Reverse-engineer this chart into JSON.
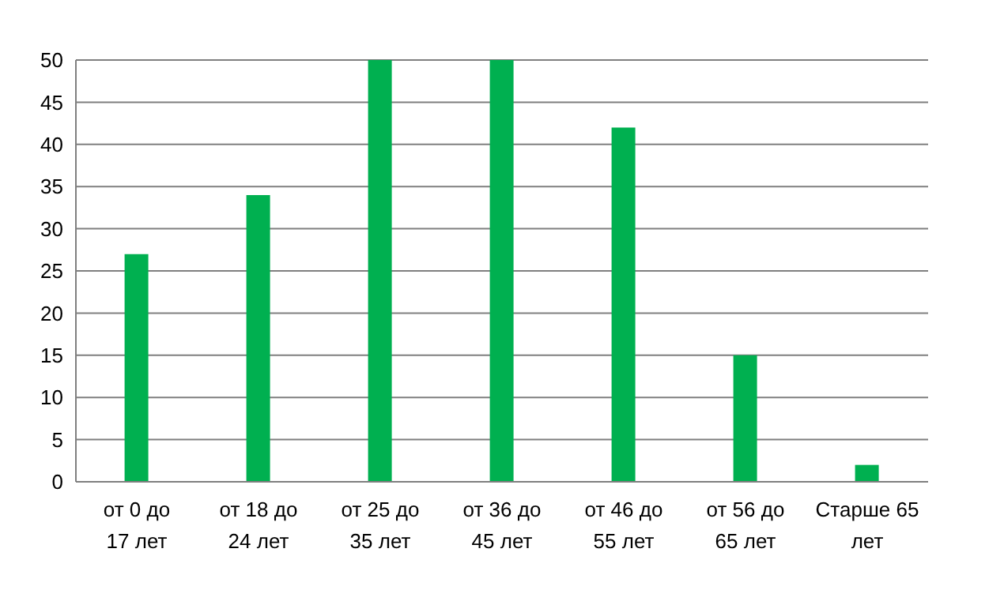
{
  "chart_data": {
    "type": "bar",
    "categories": [
      "от 0 до 17 лет",
      "от 18 до 24 лет",
      "от 25 до 35 лет",
      "от 36 до 45 лет",
      "от 46 до 55 лет",
      "от 56 до 65 лет",
      "Старше 65 лет"
    ],
    "values": [
      27,
      34,
      50,
      50,
      42,
      15,
      2
    ],
    "color": "#00b050",
    "ylim": [
      0,
      50
    ],
    "yticks": [
      0,
      5,
      10,
      15,
      20,
      25,
      30,
      35,
      40,
      45,
      50
    ],
    "grid": "y"
  }
}
